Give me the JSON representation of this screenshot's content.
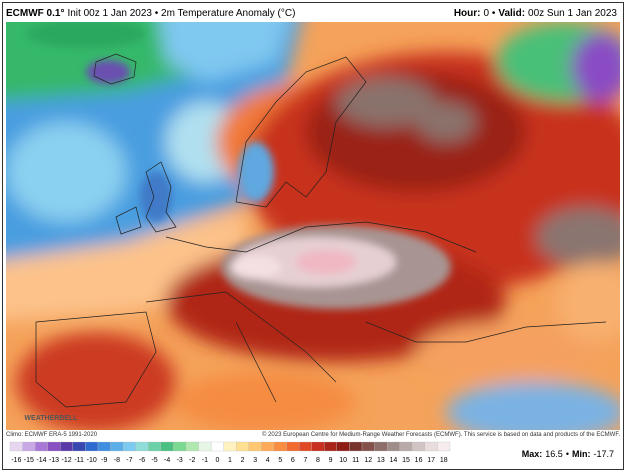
{
  "header": {
    "title_bold": "ECMWF 0.1°",
    "title_rest": "Init 00z 1 Jan 2023 • 2m Temperature Anomaly (°C)",
    "right_segments": [
      {
        "text": "Hour:",
        "bold": true
      },
      {
        "text": "0 •",
        "bold": false
      },
      {
        "text": "Valid:",
        "bold": true
      },
      {
        "text": "00z Sun 1 Jan 2023",
        "bold": false
      }
    ]
  },
  "map": {
    "watermark": "WEATHERBELL"
  },
  "footer": {
    "climo": "Climo: ECMWF ERA-5 1991-2020",
    "copyright": "© 2023 European Centre for Medium-Range Weather Forecasts (ECMWF). This service is based on data and products of the ECMWF.",
    "max_label": "Max:",
    "max_value": 16.5,
    "separator": "•",
    "min_label": "Min:",
    "min_value": -17.7
  },
  "colorbar": {
    "ticks": [
      -16,
      -15,
      -14,
      -13,
      -12,
      -11,
      -10,
      -9,
      -8,
      -7,
      -6,
      -5,
      -4,
      -3,
      -2,
      -1,
      0,
      1,
      2,
      3,
      4,
      5,
      6,
      7,
      8,
      9,
      10,
      11,
      12,
      13,
      14,
      15,
      16,
      17,
      18
    ],
    "colors": [
      "#e6d6f0",
      "#c9a8e6",
      "#a878d6",
      "#8850c0",
      "#5a3aa8",
      "#3848b0",
      "#2f6ad0",
      "#3f8ee0",
      "#5caee8",
      "#7ccaf0",
      "#8fdcd8",
      "#6cd0a8",
      "#4cc080",
      "#7ad890",
      "#b0e8b0",
      "#e6f6e6",
      "#ffffff",
      "#fff2c0",
      "#ffe090",
      "#ffc870",
      "#ffaa58",
      "#f88c40",
      "#f06a30",
      "#e04a24",
      "#c83020",
      "#a82418",
      "#8c1c14",
      "#78342c",
      "#84524a",
      "#8e6e68",
      "#a08c88",
      "#b8aaa8",
      "#d0c4c4",
      "#e8dcdc",
      "#f6ecee"
    ]
  }
}
